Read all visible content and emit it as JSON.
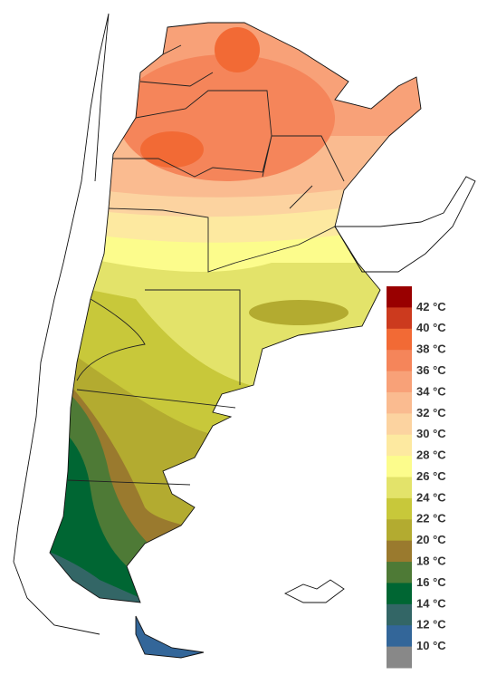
{
  "legend": {
    "labels": [
      "42 °C",
      "40 °C",
      "38 °C",
      "36 °C",
      "34 °C",
      "32 °C",
      "30 °C",
      "28 °C",
      "26 °C",
      "24 °C",
      "22 °C",
      "20 °C",
      "18 °C",
      "16 °C",
      "14 °C",
      "12 °C",
      "10 °C"
    ],
    "colors": [
      "#990000",
      "#cc3a1e",
      "#f26a35",
      "#f5855a",
      "#f8a178",
      "#fabb90",
      "#fcd3a0",
      "#fde9a0",
      "#fcfc8c",
      "#e3e36a",
      "#c8c83a",
      "#b3ab30",
      "#9a7a2e",
      "#4e7a36",
      "#006633",
      "#336666",
      "#336699",
      "#888888"
    ]
  }
}
